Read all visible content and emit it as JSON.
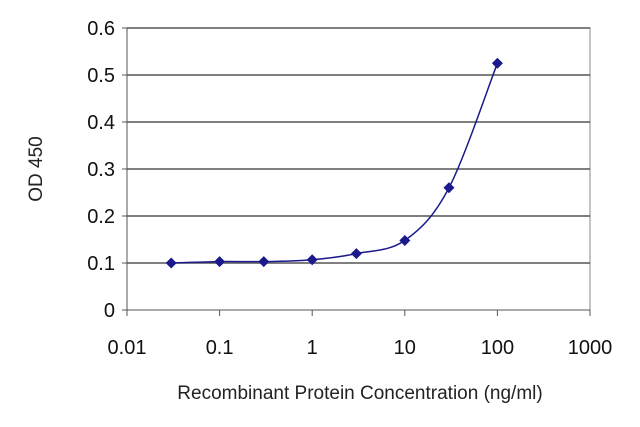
{
  "chart_data": {
    "type": "scatter",
    "title": "",
    "xlabel": "Recombinant Protein Concentration (ng/ml)",
    "ylabel": "OD 450",
    "x_scale": "log",
    "xlim": [
      0.01,
      1000
    ],
    "ylim": [
      0,
      0.6
    ],
    "x_ticks": [
      0.01,
      0.1,
      1,
      10,
      100,
      1000
    ],
    "x_tick_labels": [
      "0.01",
      "0.1",
      "1",
      "10",
      "100",
      "1000"
    ],
    "y_ticks": [
      0,
      0.1,
      0.2,
      0.3,
      0.4,
      0.5,
      0.6
    ],
    "y_tick_labels": [
      "0",
      "0.1",
      "0.2",
      "0.3",
      "0.4",
      "0.5",
      "0.6"
    ],
    "grid": "horizontal",
    "legend": "none",
    "series": [
      {
        "x": [
          0.03,
          0.1,
          0.3,
          1,
          3,
          10,
          30,
          100
        ],
        "y": [
          0.1,
          0.103,
          0.103,
          0.107,
          0.12,
          0.148,
          0.26,
          0.525
        ],
        "color": "#1a1a8c",
        "marker": "diamond",
        "fit_line": true
      }
    ]
  }
}
